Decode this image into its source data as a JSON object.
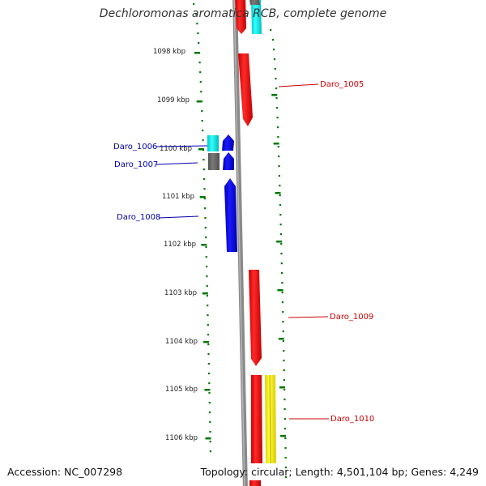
{
  "title": "Dechloromonas aromatica RCB, complete genome",
  "footer": {
    "accession": "Accession: NC_007298",
    "summary": "Topology: circular; Length: 4,501,104 bp; Genes: 4,249"
  },
  "ruler_labels": [
    "1098 kbp",
    "1099 kbp",
    "1100 kbp",
    "1101 kbp",
    "1102 kbp",
    "1103 kbp",
    "1104 kbp",
    "1105 kbp",
    "1106 kbp"
  ],
  "gene_labels": [
    {
      "text": "Daro_1005",
      "color": "#cc0000"
    },
    {
      "text": "Daro_1006",
      "color": "#0000aa"
    },
    {
      "text": "Daro_1007",
      "color": "#0000aa"
    },
    {
      "text": "Daro_1008",
      "color": "#0000aa"
    },
    {
      "text": "Daro_1009",
      "color": "#cc0000"
    },
    {
      "text": "Daro_1010",
      "color": "#cc0000"
    }
  ],
  "colors": {
    "forward_gene": "#ff0000",
    "reverse_gene": "#0000ee",
    "rna_gene": "#00e5e5",
    "pseudo_gene": "#666666",
    "other_gene": "#ffff00",
    "backbone": "#8a8a8a",
    "tick": "#007700"
  }
}
